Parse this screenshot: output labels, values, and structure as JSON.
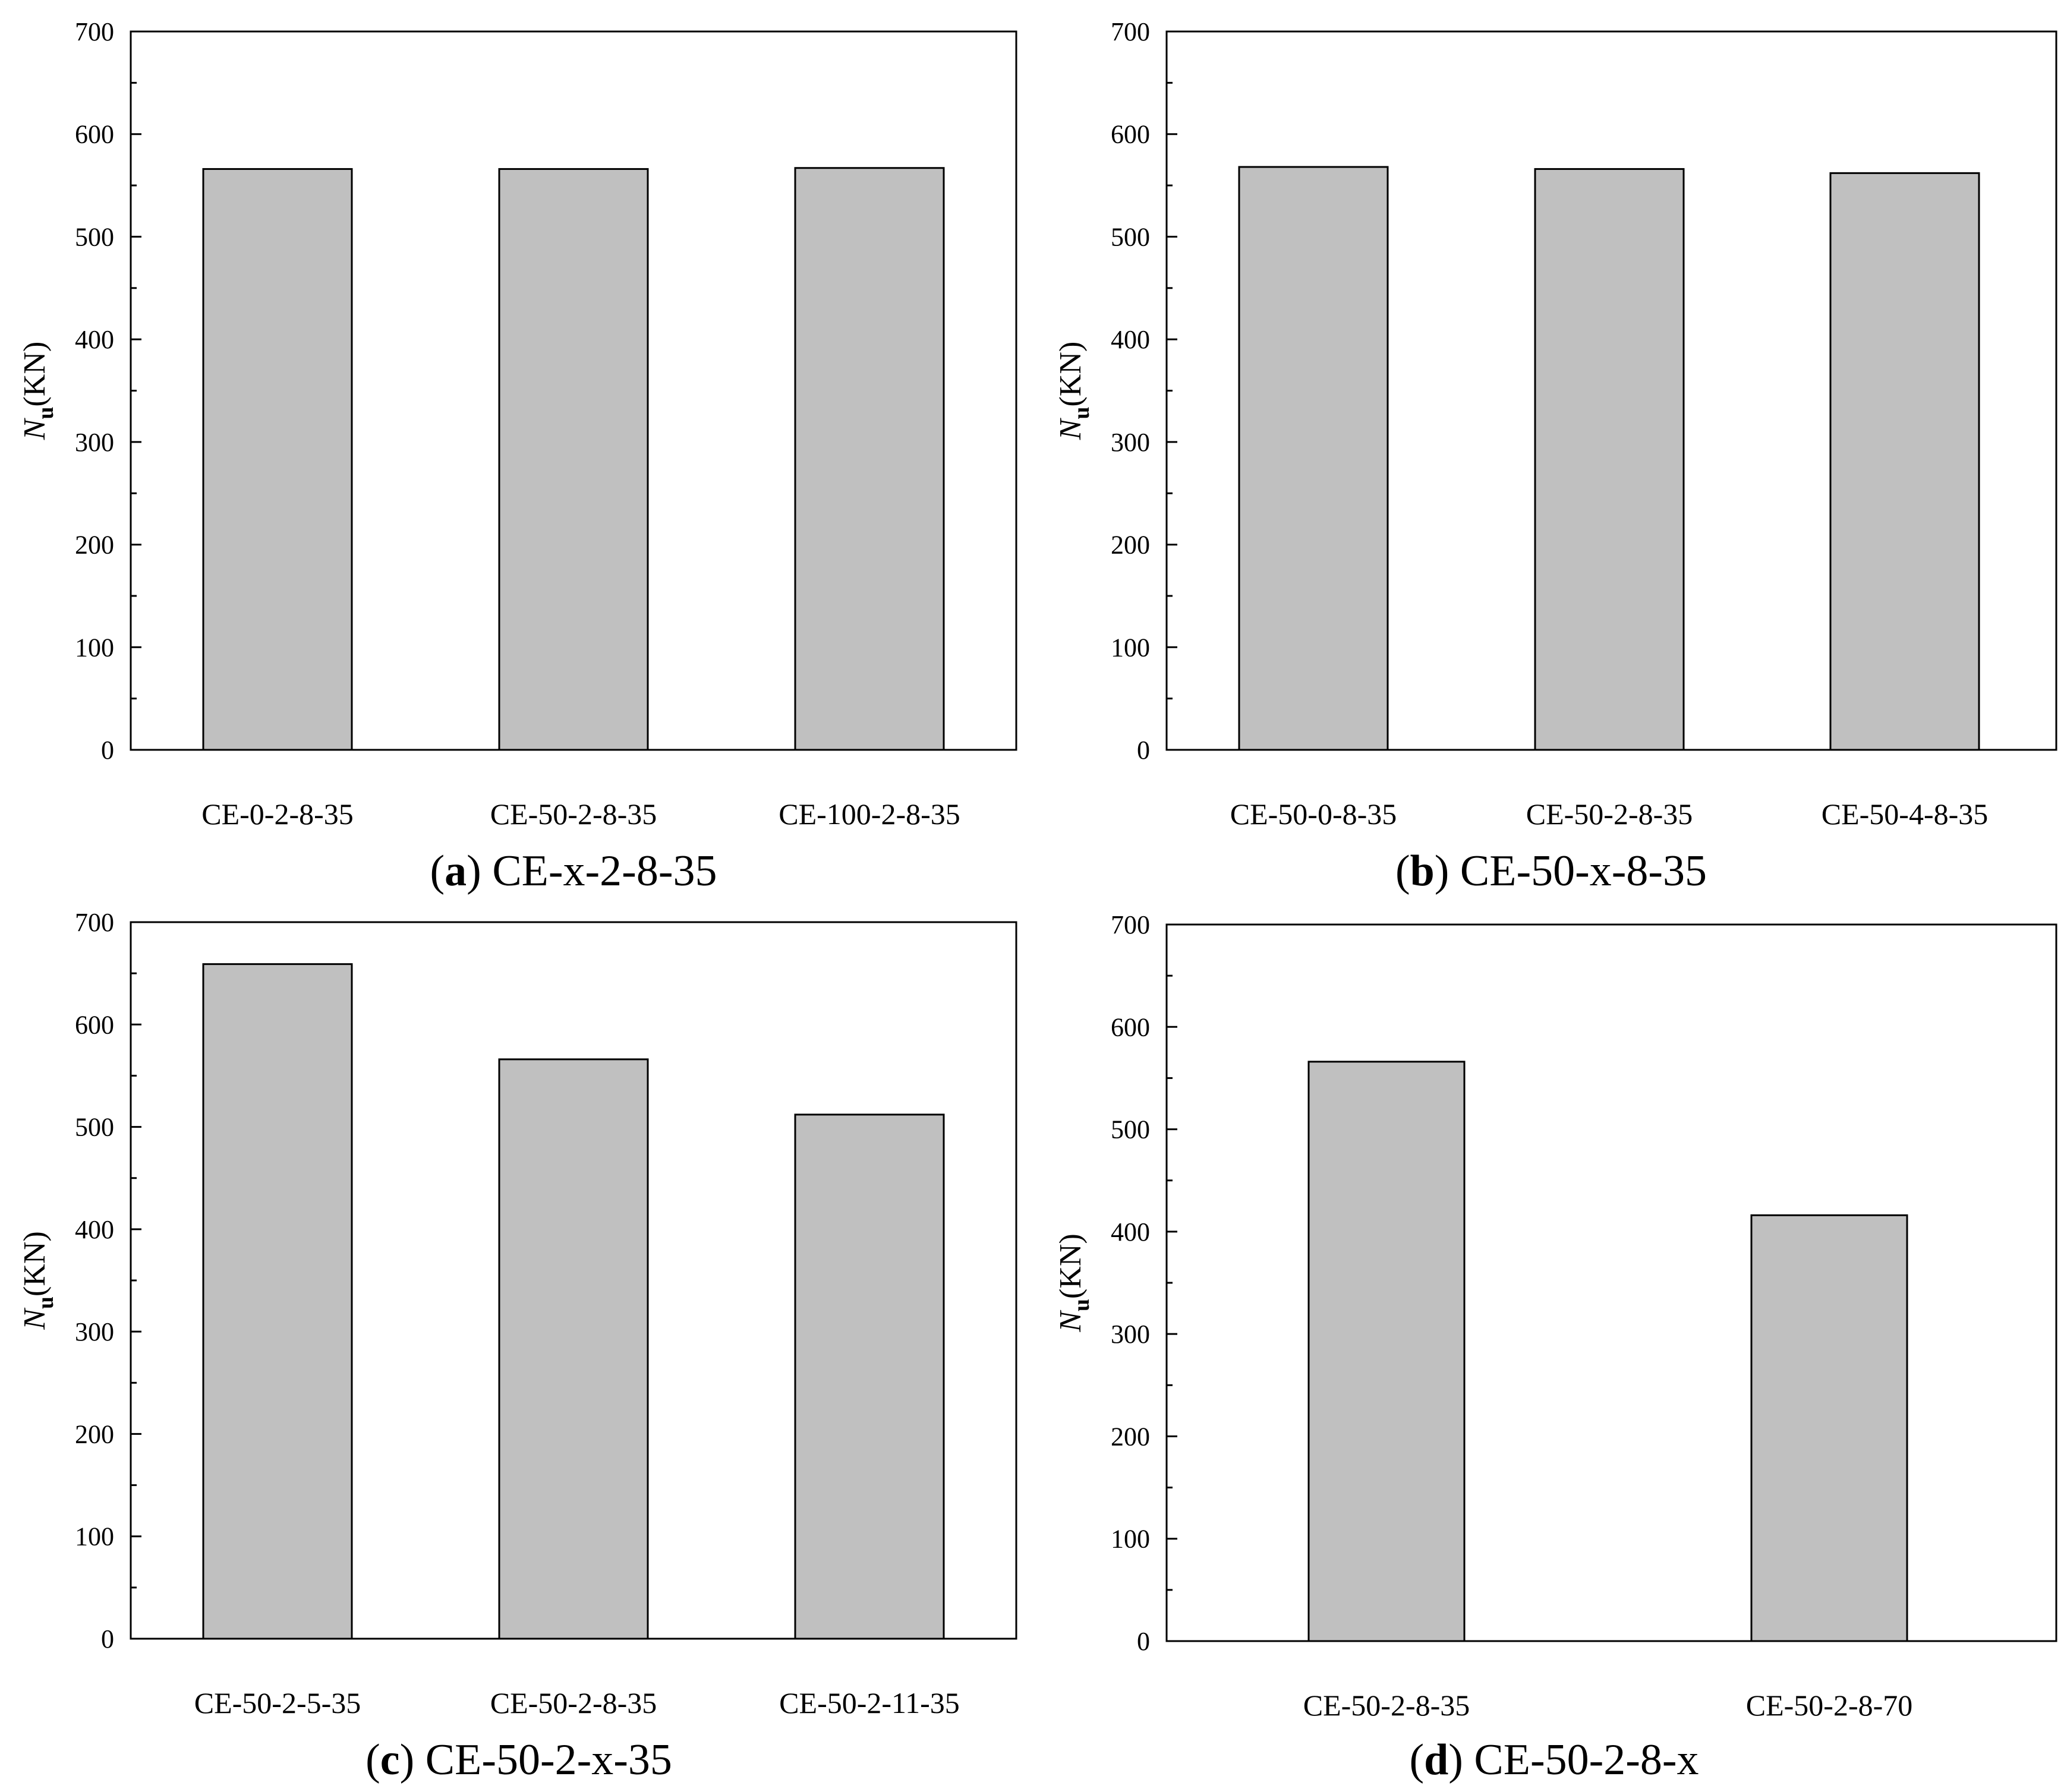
{
  "bar_color": "#c0c0c0",
  "chart_data": [
    {
      "type": "bar",
      "caption_letter": "a",
      "caption_text": "CE-x-2-8-35",
      "ylabel_main": "N",
      "ylabel_sub": "u",
      "ylabel_unit": "(KN)",
      "ylim": [
        0,
        700
      ],
      "yticks": [
        "0",
        "100",
        "200",
        "300",
        "400",
        "500",
        "600",
        "700"
      ],
      "categories": [
        "CE-0-2-8-35",
        "CE-50-2-8-35",
        "CE-100-2-8-35"
      ],
      "values": [
        566,
        566,
        567
      ]
    },
    {
      "type": "bar",
      "caption_letter": "b",
      "caption_text": "CE-50-x-8-35",
      "ylabel_main": "N",
      "ylabel_sub": "u",
      "ylabel_unit": "(KN)",
      "ylim": [
        0,
        700
      ],
      "yticks": [
        "0",
        "100",
        "200",
        "300",
        "400",
        "500",
        "600",
        "700"
      ],
      "categories": [
        "CE-50-0-8-35",
        "CE-50-2-8-35",
        "CE-50-4-8-35"
      ],
      "values": [
        568,
        566,
        562
      ]
    },
    {
      "type": "bar",
      "caption_letter": "c",
      "caption_text": "CE-50-2-x-35",
      "ylabel_main": "N",
      "ylabel_sub": "u",
      "ylabel_unit": "(KN)",
      "ylim": [
        0,
        700
      ],
      "yticks": [
        "0",
        "100",
        "200",
        "300",
        "400",
        "500",
        "600",
        "700"
      ],
      "categories": [
        "CE-50-2-5-35",
        "CE-50-2-8-35",
        "CE-50-2-11-35"
      ],
      "values": [
        659,
        566,
        512
      ]
    },
    {
      "type": "bar",
      "caption_letter": "d",
      "caption_text": "CE-50-2-8-x",
      "ylabel_main": "N",
      "ylabel_sub": "u",
      "ylabel_unit": "(KN)",
      "ylim": [
        0,
        700
      ],
      "yticks": [
        "0",
        "100",
        "200",
        "300",
        "400",
        "500",
        "600",
        "700"
      ],
      "categories": [
        "CE-50-2-8-35",
        "CE-50-2-8-70"
      ],
      "values": [
        566,
        416
      ]
    }
  ]
}
